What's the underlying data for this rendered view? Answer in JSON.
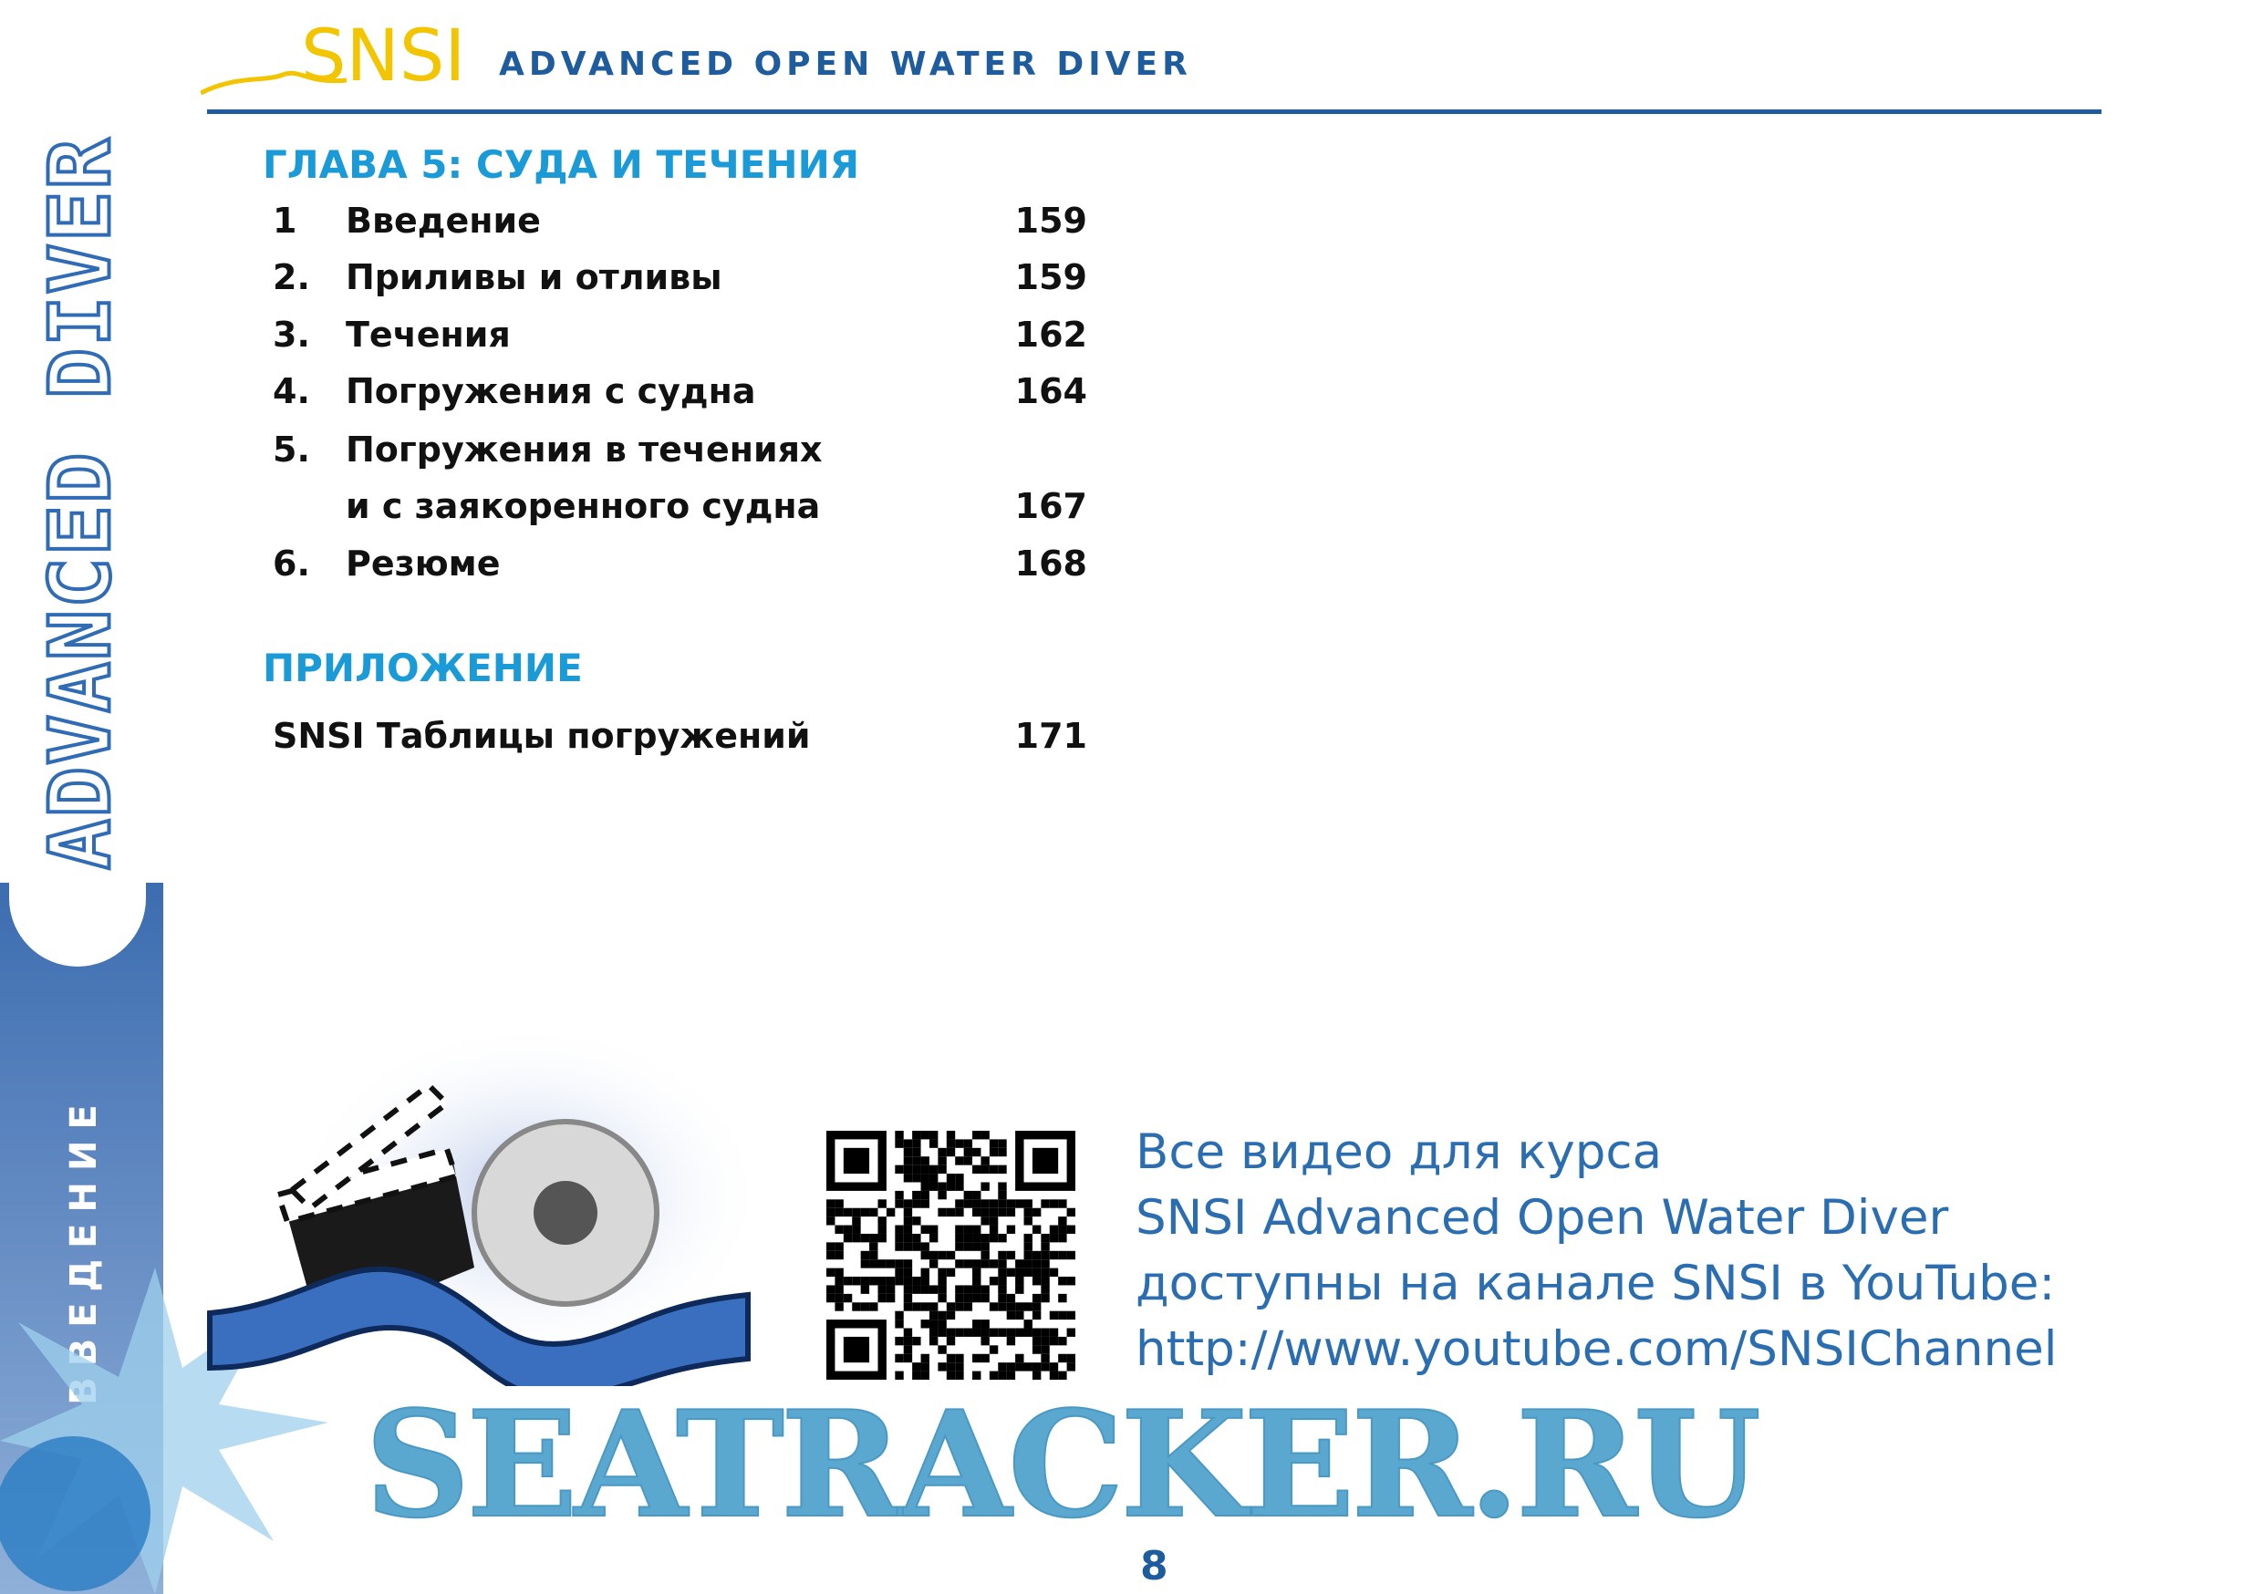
{
  "header": {
    "logo_text": "SNSI",
    "title": "ADVANCED OPEN WATER DIVER"
  },
  "sidebar": {
    "vertical_title": "ADVANCED DIVER",
    "section": "ВВЕДЕНИЕ"
  },
  "chapter": {
    "title": "ГЛАВА 5: СУДА И ТЕЧЕНИЯ",
    "items": [
      {
        "num": "1",
        "title": "Введение",
        "page": "159"
      },
      {
        "num": "2.",
        "title": "Приливы и отливы",
        "page": "159"
      },
      {
        "num": "3.",
        "title": "Течения",
        "page": "162"
      },
      {
        "num": "4.",
        "title": "Погружения с судна",
        "page": "164"
      },
      {
        "num": "5.",
        "title": "Погружения в течениях",
        "page": ""
      },
      {
        "num": "",
        "title": "и с заякоренного судна",
        "page": "167"
      },
      {
        "num": "6.",
        "title": "Резюме",
        "page": "168"
      }
    ]
  },
  "appendix": {
    "title": "ПРИЛОЖЕНИЕ",
    "items": [
      {
        "title": "SNSI Таблицы погружений",
        "page": "171"
      }
    ]
  },
  "video": {
    "lines": [
      "Все видео для курса",
      "SNSI Advanced Open Water Diver",
      "доступны на канале SNSI в YouTube:",
      "http://www.youtube.com/SNSIChannel"
    ]
  },
  "watermark": "SEATRACKER.RU",
  "page_number": "8",
  "colors": {
    "brand_blue": "#1f5c9e",
    "heading_cyan": "#1a9ad6",
    "logo_yellow": "#f2c500",
    "watermark": "#5aa8d0"
  }
}
